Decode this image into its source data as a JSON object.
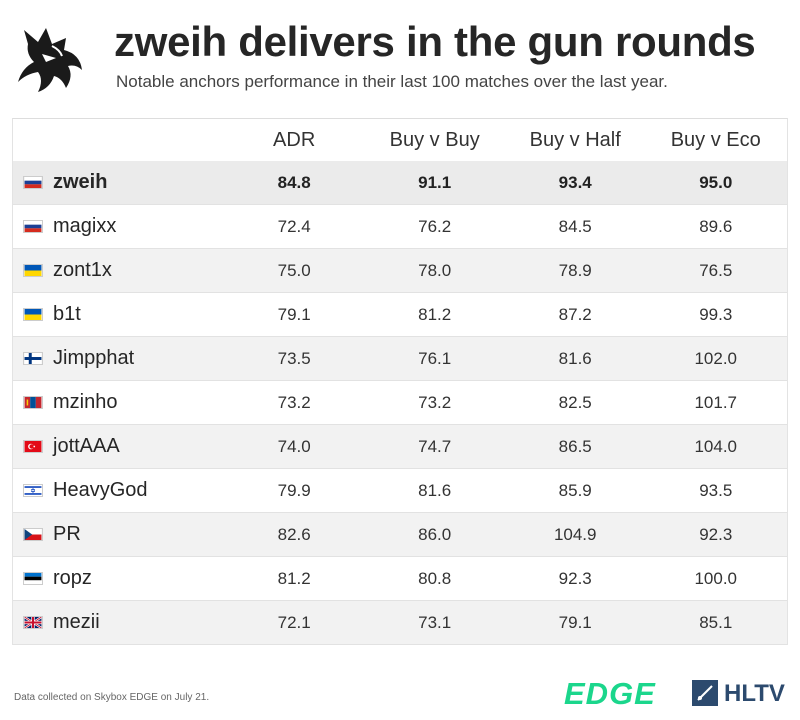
{
  "header": {
    "title": "zweih delivers in the gun rounds",
    "subtitle": "Notable anchors performance in their last 100 matches over the last year."
  },
  "table": {
    "columns": [
      "",
      "ADR",
      "Buy v Buy",
      "Buy v Half",
      "Buy v Eco"
    ],
    "rows": [
      {
        "player": "zweih",
        "flag": "russia",
        "adr": "84.8",
        "buy_v_buy": "91.1",
        "buy_v_half": "93.4",
        "buy_v_eco": "95.0"
      },
      {
        "player": "magixx",
        "flag": "russia",
        "adr": "72.4",
        "buy_v_buy": "76.2",
        "buy_v_half": "84.5",
        "buy_v_eco": "89.6"
      },
      {
        "player": "zont1x",
        "flag": "ukraine",
        "adr": "75.0",
        "buy_v_buy": "78.0",
        "buy_v_half": "78.9",
        "buy_v_eco": "76.5"
      },
      {
        "player": "b1t",
        "flag": "ukraine",
        "adr": "79.1",
        "buy_v_buy": "81.2",
        "buy_v_half": "87.2",
        "buy_v_eco": "99.3"
      },
      {
        "player": "Jimpphat",
        "flag": "finland",
        "adr": "73.5",
        "buy_v_buy": "76.1",
        "buy_v_half": "81.6",
        "buy_v_eco": "102.0"
      },
      {
        "player": "mzinho",
        "flag": "mongolia",
        "adr": "73.2",
        "buy_v_buy": "73.2",
        "buy_v_half": "82.5",
        "buy_v_eco": "101.7"
      },
      {
        "player": "jottAAA",
        "flag": "turkey",
        "adr": "74.0",
        "buy_v_buy": "74.7",
        "buy_v_half": "86.5",
        "buy_v_eco": "104.0"
      },
      {
        "player": "HeavyGod",
        "flag": "israel",
        "adr": "79.9",
        "buy_v_buy": "81.6",
        "buy_v_half": "85.9",
        "buy_v_eco": "93.5"
      },
      {
        "player": "PR",
        "flag": "czechia",
        "adr": "82.6",
        "buy_v_buy": "86.0",
        "buy_v_half": "104.9",
        "buy_v_eco": "92.3"
      },
      {
        "player": "ropz",
        "flag": "estonia",
        "adr": "81.2",
        "buy_v_buy": "80.8",
        "buy_v_half": "92.3",
        "buy_v_eco": "100.0"
      },
      {
        "player": "mezii",
        "flag": "united-kingdom",
        "adr": "72.1",
        "buy_v_buy": "73.1",
        "buy_v_half": "79.1",
        "buy_v_eco": "85.1"
      }
    ]
  },
  "footer": {
    "note": "Data collected on Skybox EDGE on July 21.",
    "edge_logo": "EDGE",
    "hltv_logo": "HLTV"
  },
  "colors": {
    "accent_green": "#1bd68c",
    "hltv_blue": "#2c4a6e",
    "highlight_row": "#ebebeb"
  }
}
